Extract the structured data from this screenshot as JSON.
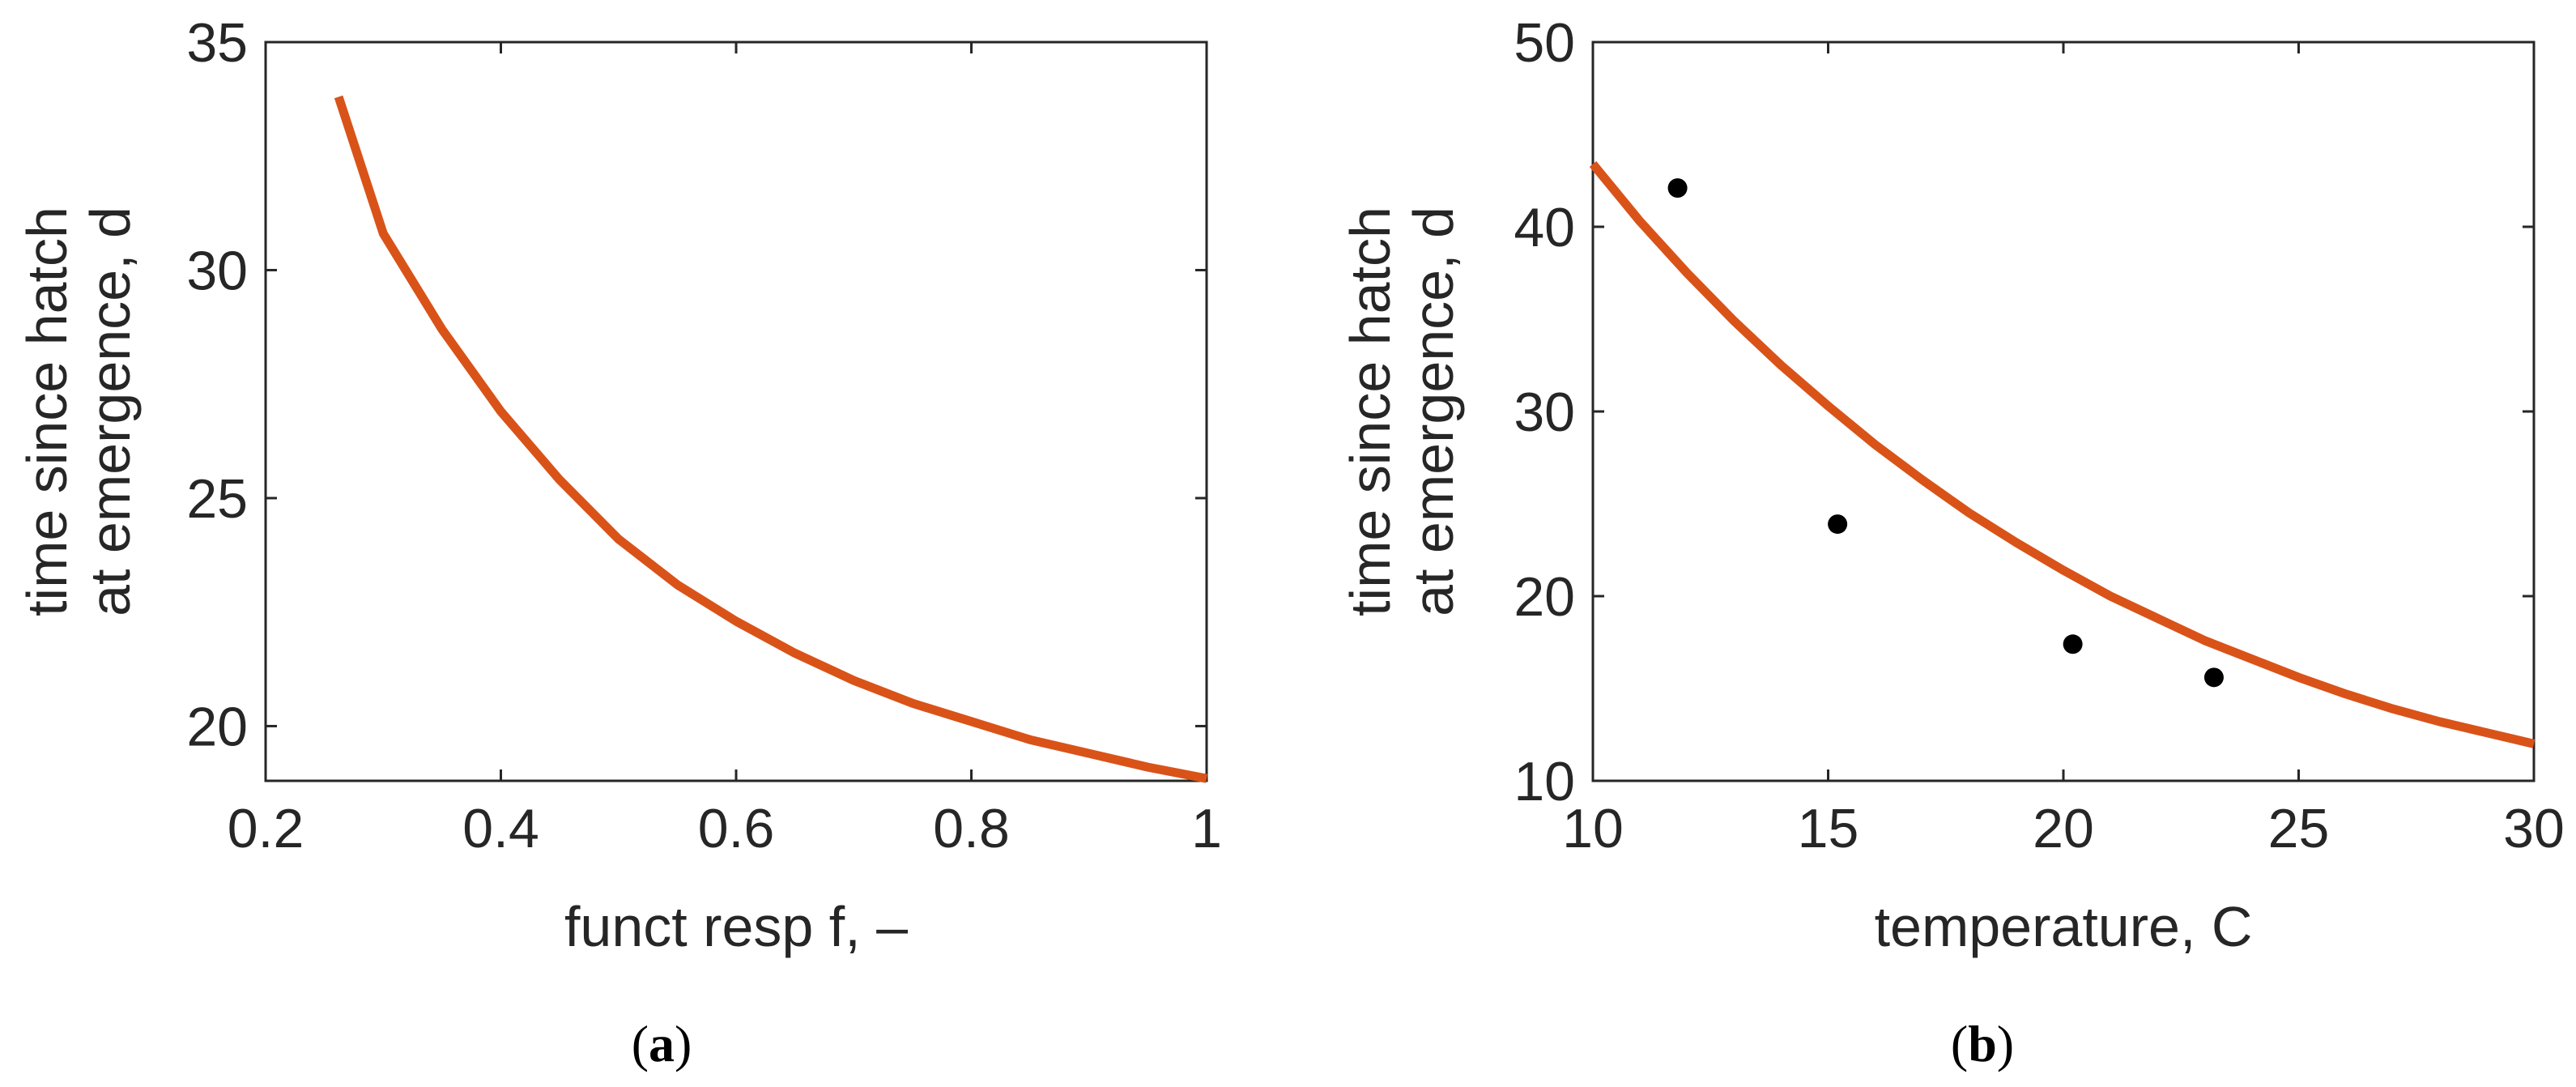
{
  "chart_data": [
    {
      "type": "line",
      "panel_label": "(a)",
      "panel_letter": "a",
      "xlabel": "funct resp f, –",
      "ylabel_lines": [
        "time since hatch",
        "at emergence, d"
      ],
      "xlim": [
        0.2,
        1
      ],
      "ylim": [
        18.8,
        35
      ],
      "xticks": [
        0.2,
        0.4,
        0.6,
        0.8,
        1
      ],
      "xtick_labels": [
        "0.2",
        "0.4",
        "0.6",
        "0.8",
        "1"
      ],
      "yticks": [
        20,
        25,
        30,
        35
      ],
      "ytick_labels": [
        "20",
        "25",
        "30",
        "35"
      ],
      "grid": false,
      "line_color": "#d95319",
      "series": [
        {
          "x": [
            0.262,
            0.3,
            0.35,
            0.4,
            0.45,
            0.5,
            0.55,
            0.6,
            0.65,
            0.7,
            0.75,
            0.8,
            0.85,
            0.9,
            0.95,
            1.0
          ],
          "values": [
            33.8,
            30.8,
            28.7,
            26.9,
            25.4,
            24.1,
            23.1,
            22.3,
            21.6,
            21.0,
            20.5,
            20.1,
            19.7,
            19.4,
            19.1,
            18.85
          ]
        }
      ]
    },
    {
      "type": "line",
      "panel_label": "(b)",
      "panel_letter": "b",
      "xlabel": "temperature, C",
      "ylabel_lines": [
        "time since hatch",
        "at emergence, d"
      ],
      "xlim": [
        10,
        30
      ],
      "ylim": [
        10,
        50
      ],
      "xticks": [
        10,
        15,
        20,
        25,
        30
      ],
      "xtick_labels": [
        "10",
        "15",
        "20",
        "25",
        "30"
      ],
      "yticks": [
        10,
        20,
        30,
        40,
        50
      ],
      "ytick_labels": [
        "10",
        "20",
        "30",
        "40",
        "50"
      ],
      "grid": false,
      "line_color": "#d95319",
      "point_color": "#000000",
      "series": [
        {
          "x": [
            10,
            11,
            12,
            13,
            14,
            15,
            16,
            17,
            18,
            19,
            20,
            21,
            22,
            23,
            24,
            25,
            26,
            27,
            28,
            29,
            30
          ],
          "values": [
            43.4,
            40.3,
            37.5,
            34.9,
            32.5,
            30.3,
            28.2,
            26.3,
            24.5,
            22.9,
            21.4,
            20.0,
            18.8,
            17.6,
            16.6,
            15.6,
            14.7,
            13.9,
            13.2,
            12.6,
            12.0
          ]
        }
      ],
      "points": {
        "x": [
          11.8,
          15.2,
          20.2,
          23.2
        ],
        "y": [
          42.1,
          23.9,
          17.4,
          15.6
        ]
      }
    }
  ]
}
